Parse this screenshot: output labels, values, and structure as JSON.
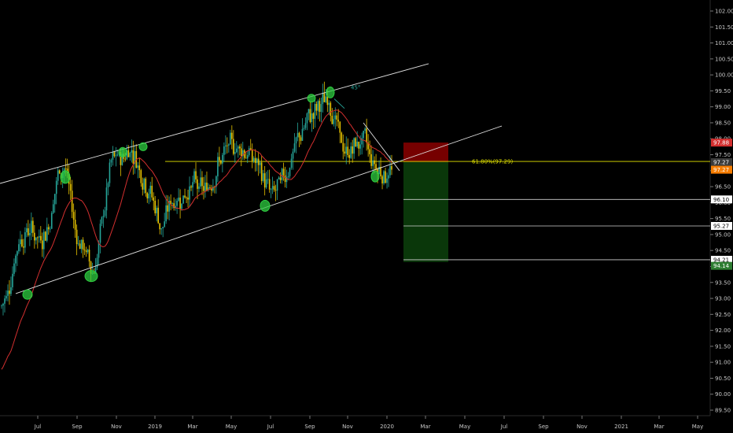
{
  "chart_data": {
    "type": "candlestick",
    "instrument_note": "",
    "y_axis": {
      "ticks": [
        "102.00",
        "101.50",
        "101.00",
        "100.50",
        "100.00",
        "99.50",
        "99.00",
        "98.50",
        "98.00",
        "97.50",
        "97.00",
        "96.50",
        "96.00",
        "95.50",
        "95.00",
        "94.50",
        "94.00",
        "93.50",
        "93.00",
        "92.50",
        "92.00",
        "91.50",
        "91.00",
        "90.50",
        "90.00",
        "89.50"
      ],
      "range": [
        89.3,
        102.3
      ],
      "position": "right"
    },
    "x_axis": {
      "ticks": [
        "Jul",
        "Sep",
        "Nov",
        "2019",
        "Mar",
        "May",
        "Jul",
        "Sep",
        "Nov",
        "2020",
        "Mar",
        "May",
        "Jul",
        "Sep",
        "Nov",
        "2021",
        "Mar",
        "May"
      ]
    },
    "price_badges": [
      {
        "value": "97.88",
        "color": "#d32f2f",
        "text_color": "#ffffff",
        "level": 97.88
      },
      {
        "value": "97.27",
        "color": "#3a3a3a",
        "text_color": "#ffffff",
        "level": 97.27
      },
      {
        "value": "97.27",
        "color": "#f57c00",
        "text_color": "#ffffff",
        "level": 97.03
      },
      {
        "value": "96.10",
        "color": "#ffffff",
        "text_color": "#000000",
        "level": 96.1
      },
      {
        "value": "95.27",
        "color": "#ffffff",
        "text_color": "#000000",
        "level": 95.27
      },
      {
        "value": "94.21",
        "color": "#ffffff",
        "text_color": "#000000",
        "level": 94.21
      },
      {
        "value": "94.14",
        "color": "#2e7d32",
        "text_color": "#ffffff",
        "level": 94.02
      }
    ],
    "annotations": [
      {
        "text": "61.80%(97.29)",
        "level": 97.29,
        "color": "#e6e600"
      },
      {
        "text": "45°",
        "color": "#26a69a"
      }
    ],
    "horizontal_levels": [
      96.1,
      95.27,
      94.21
    ],
    "fib_level": 97.29,
    "short_position": {
      "entry": 97.27,
      "stop": 97.88,
      "target": 94.14
    },
    "channel": {
      "upper": {
        "from": [
          "2018-06",
          "96.80"
        ],
        "to": [
          "2020-02",
          "100.40"
        ]
      },
      "lower": {
        "from": [
          "2018-06",
          "93.10"
        ],
        "to": [
          "2020-03",
          "98.40"
        ]
      }
    },
    "moving_average": "red line",
    "candle_colors": {
      "up": "#26a69a",
      "down": "#e6c200"
    },
    "colors": {
      "background": "#000000",
      "grid": "#111111",
      "trend_lines": "#e0e0e0",
      "highlights": "#2ecc40",
      "stop_zone": "#8b0000",
      "target_zone": "#0b3d0b"
    }
  }
}
